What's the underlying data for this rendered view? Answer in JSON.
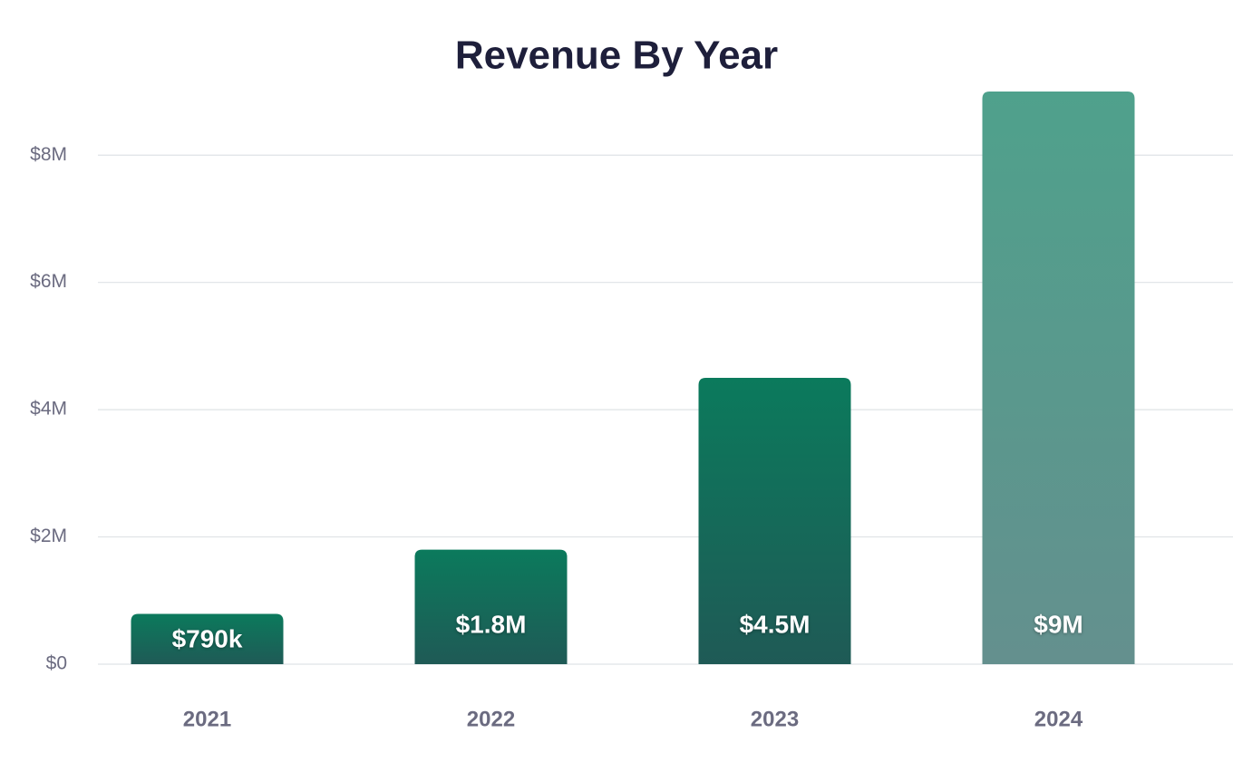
{
  "chart_data": {
    "type": "bar",
    "title": "Revenue By Year",
    "categories": [
      "2021",
      "2022",
      "2023",
      "2024"
    ],
    "values": [
      790000,
      1800000,
      4500000,
      9000000
    ],
    "value_labels": [
      "$790k",
      "$1.8M",
      "$4.5M",
      "$9M"
    ],
    "colors": [
      "#0b7a5c",
      "#0b7a5c",
      "#0b7a5c",
      "#4fa18c"
    ],
    "colors_bottom": [
      "#1f5a56",
      "#1f5a56",
      "#1f5a56",
      "#64908e"
    ],
    "ylim": [
      0,
      9000000
    ],
    "yticks": [
      {
        "value": 0,
        "label": "$0"
      },
      {
        "value": 2000000,
        "label": "$2M"
      },
      {
        "value": 4000000,
        "label": "$4M"
      },
      {
        "value": 6000000,
        "label": "$6M"
      },
      {
        "value": 8000000,
        "label": "$8M"
      }
    ],
    "grid": true
  }
}
